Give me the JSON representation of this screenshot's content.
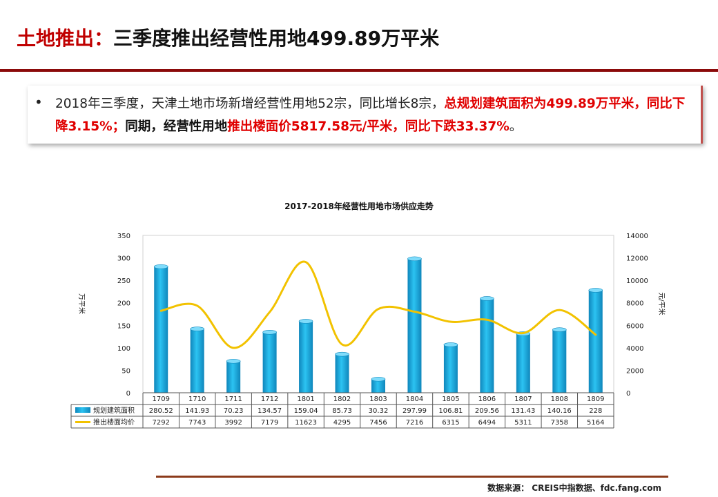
{
  "header": {
    "title_prefix": "土地推出：",
    "title_main": "三季度推出经营性用地499.89万平米"
  },
  "summary": {
    "bullet": "•",
    "part1": "2018年三季度，天津土地市场新增经营性用地52宗，同比增长8宗，",
    "part2": "总规划建筑面积为499.89万平米，同比下降3.15%；",
    "part3": "同期，经营性用地",
    "part4": "推出楼面价5817.58元/平米，同比下跌33.37%",
    "part5": "。"
  },
  "chart_data": {
    "type": "bar+line",
    "title": "2017-2018年经营性用地市场供应走势",
    "categories": [
      "1709",
      "1710",
      "1711",
      "1712",
      "1801",
      "1802",
      "1803",
      "1804",
      "1805",
      "1806",
      "1807",
      "1808",
      "1809"
    ],
    "series": [
      {
        "name": "规划建筑面积",
        "type": "bar",
        "axis": "left",
        "labels": [
          "280.52",
          "141.93",
          "70.23",
          "134.57",
          "159.04",
          "85.73",
          "30.32",
          "297.99",
          "106.81",
          "209.56",
          "131.43",
          "140.16",
          "228"
        ],
        "values": [
          280.52,
          141.93,
          70.23,
          134.57,
          159.04,
          85.73,
          30.32,
          297.99,
          106.81,
          209.56,
          131.43,
          140.16,
          228
        ]
      },
      {
        "name": "推出楼面均价",
        "type": "line",
        "axis": "right",
        "labels": [
          "7292",
          "7743",
          "3992",
          "7179",
          "11623",
          "4295",
          "7456",
          "7216",
          "6315",
          "6494",
          "5311",
          "7358",
          "5164"
        ],
        "values": [
          7292,
          7743,
          3992,
          7179,
          11623,
          4295,
          7456,
          7216,
          6315,
          6494,
          5311,
          7358,
          5164
        ]
      }
    ],
    "ylabel_left": "万平米",
    "ylabel_right": "元/平米",
    "ylim_left": [
      0,
      350
    ],
    "yticks_left": [
      "0",
      "50",
      "100",
      "150",
      "200",
      "250",
      "300",
      "350"
    ],
    "ylim_right": [
      0,
      14000
    ],
    "yticks_right": [
      "0",
      "2000",
      "4000",
      "6000",
      "8000",
      "10000",
      "12000",
      "14000"
    ],
    "colors": {
      "bar": "#1fb4e8",
      "bar_dark": "#0e84b8",
      "line": "#f2c200"
    }
  },
  "footer": {
    "source": "数据来源： CREIS中指数据、fdc.fang.com"
  }
}
